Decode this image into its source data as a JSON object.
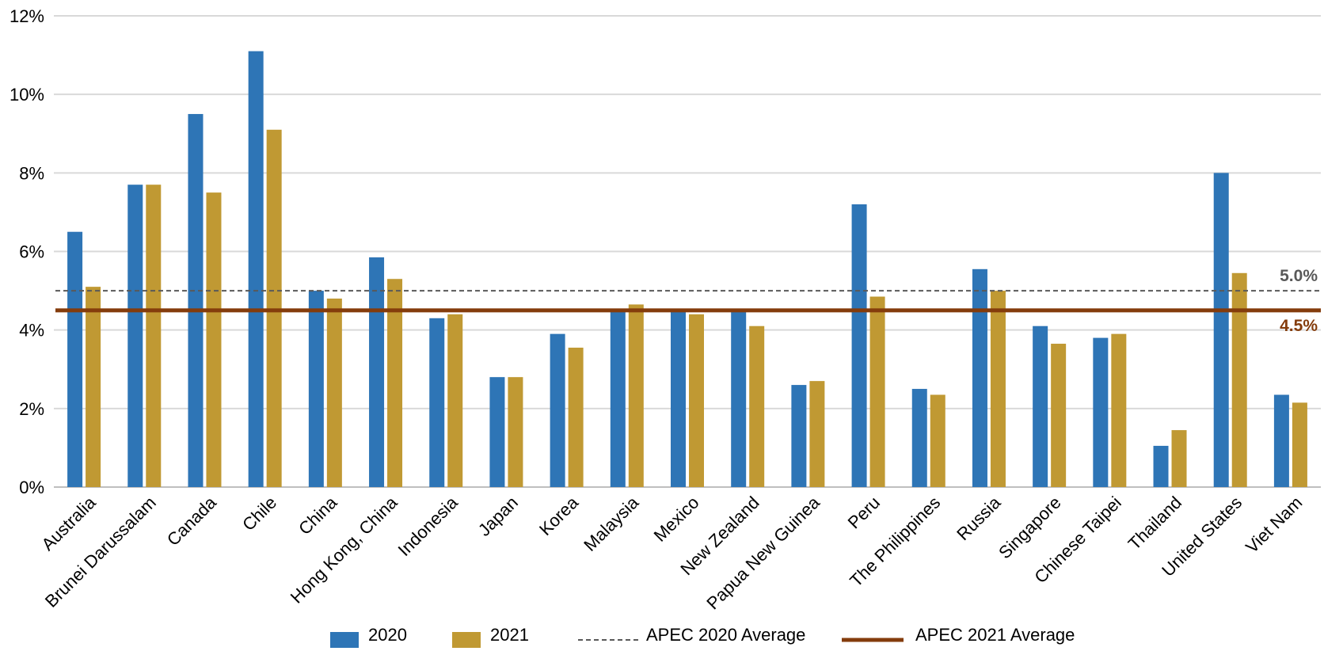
{
  "chart_data": {
    "type": "bar",
    "title": "",
    "xlabel": "",
    "ylabel": "",
    "ylim": [
      0,
      12
    ],
    "yticks": [
      0,
      2,
      4,
      6,
      8,
      10,
      12
    ],
    "ytick_labels": [
      "0%",
      "2%",
      "4%",
      "6%",
      "8%",
      "10%",
      "12%"
    ],
    "grid": true,
    "legend_position": "bottom",
    "categories": [
      "Australia",
      "Brunei Darussalam",
      "Canada",
      "Chile",
      "China",
      "Hong Kong, China",
      "Indonesia",
      "Japan",
      "Korea",
      "Malaysia",
      "Mexico",
      "New Zealand",
      "Papua New Guinea",
      "Peru",
      "The Philippines",
      "Russia",
      "Singapore",
      "Chinese Taipei",
      "Thailand",
      "United States",
      "Viet Nam"
    ],
    "series": [
      {
        "name": "2020",
        "color": "#2e75b6",
        "values": [
          6.5,
          7.7,
          9.5,
          11.1,
          5.0,
          5.85,
          4.3,
          2.8,
          3.9,
          4.5,
          4.5,
          4.5,
          2.6,
          7.2,
          2.5,
          5.55,
          4.1,
          3.8,
          1.05,
          8.0,
          2.35
        ]
      },
      {
        "name": "2021",
        "color": "#c09933",
        "values": [
          5.1,
          7.7,
          7.5,
          9.1,
          4.8,
          5.3,
          4.4,
          2.8,
          3.55,
          4.65,
          4.4,
          4.1,
          2.7,
          4.85,
          2.35,
          5.0,
          3.65,
          3.9,
          1.45,
          5.45,
          2.15
        ]
      }
    ],
    "reference_lines": [
      {
        "name": "APEC 2020 Average",
        "value": 5.0,
        "label": "5.0%",
        "color": "#595959",
        "style": "dashed"
      },
      {
        "name": "APEC 2021 Average",
        "value": 4.5,
        "label": "4.5%",
        "color": "#843c0c",
        "style": "solid"
      }
    ]
  }
}
